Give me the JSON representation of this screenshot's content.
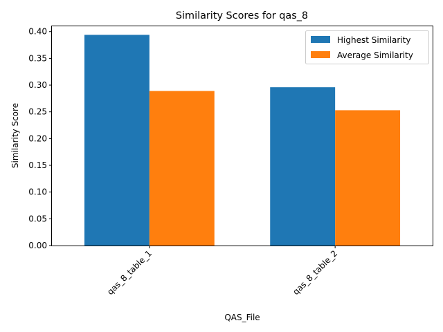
{
  "chart_data": {
    "type": "bar",
    "title": "Similarity Scores for qas_8",
    "xlabel": "QAS_File",
    "ylabel": "Similarity Score",
    "categories": [
      "qas_8_table_1",
      "qas_8_table_2"
    ],
    "series": [
      {
        "name": "Highest Similarity",
        "color": "#1f77b4",
        "values": [
          0.394,
          0.296
        ]
      },
      {
        "name": "Average Similarity",
        "color": "#ff7f0e",
        "values": [
          0.289,
          0.253
        ]
      }
    ],
    "ylim": [
      0,
      0.41
    ],
    "yticks": [
      0.0,
      0.05,
      0.1,
      0.15,
      0.2,
      0.25,
      0.3,
      0.35,
      0.4
    ],
    "ytick_labels": [
      "0.00",
      "0.05",
      "0.10",
      "0.15",
      "0.20",
      "0.25",
      "0.30",
      "0.35",
      "0.40"
    ],
    "grid": false,
    "legend_position": "top-right"
  }
}
